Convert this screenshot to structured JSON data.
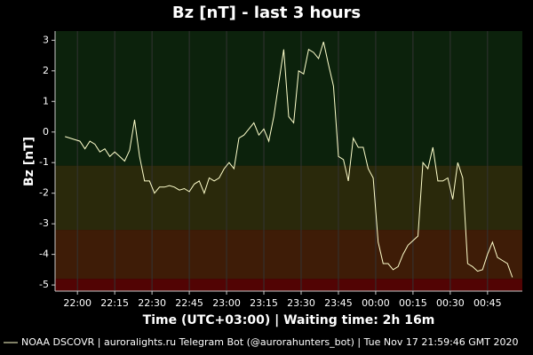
{
  "chart_data": {
    "type": "line",
    "title": "Bz [nT] - last 3 hours",
    "y_label": "Bz [nT]",
    "x_label": "Time (UTC+03:00) | Waiting time: 2h 16m",
    "footer": "NOAA DSCOVR | auroralights.ru Telegram Bot (@aurorahunters_bot) | Tue Nov 17 21:59:46 GMT 2020",
    "x": [
      "21:55",
      "21:57",
      "21:59",
      "22:01",
      "22:03",
      "22:05",
      "22:07",
      "22:09",
      "22:11",
      "22:13",
      "22:15",
      "22:17",
      "22:19",
      "22:21",
      "22:23",
      "22:25",
      "22:27",
      "22:29",
      "22:31",
      "22:33",
      "22:35",
      "22:37",
      "22:39",
      "22:41",
      "22:43",
      "22:45",
      "22:47",
      "22:49",
      "22:51",
      "22:53",
      "22:55",
      "22:57",
      "22:59",
      "23:01",
      "23:03",
      "23:05",
      "23:07",
      "23:09",
      "23:11",
      "23:13",
      "23:15",
      "23:17",
      "23:19",
      "23:21",
      "23:23",
      "23:25",
      "23:27",
      "23:29",
      "23:31",
      "23:33",
      "23:35",
      "23:37",
      "23:39",
      "23:41",
      "23:43",
      "23:45",
      "23:47",
      "23:49",
      "23:51",
      "23:53",
      "23:55",
      "23:57",
      "23:59",
      "00:01",
      "00:03",
      "00:05",
      "00:07",
      "00:09",
      "00:11",
      "00:13",
      "00:15",
      "00:17",
      "00:19",
      "00:21",
      "00:23",
      "00:25",
      "00:27",
      "00:29",
      "00:31",
      "00:33",
      "00:35",
      "00:37",
      "00:39",
      "00:41",
      "00:43",
      "00:45",
      "00:47",
      "00:49",
      "00:51",
      "00:53",
      "00:55"
    ],
    "series": [
      {
        "name": "NOAA DSCOVR",
        "color": "#ffffcc",
        "values": [
          -0.15,
          -0.2,
          -0.25,
          -0.3,
          -0.55,
          -0.3,
          -0.4,
          -0.65,
          -0.55,
          -0.8,
          -0.65,
          -0.8,
          -0.95,
          -0.6,
          0.4,
          -0.8,
          -1.6,
          -1.6,
          -2.0,
          -1.8,
          -1.8,
          -1.75,
          -1.8,
          -1.9,
          -1.85,
          -1.95,
          -1.7,
          -1.6,
          -2.0,
          -1.5,
          -1.6,
          -1.5,
          -1.2,
          -1.0,
          -1.2,
          -0.2,
          -0.1,
          0.1,
          0.3,
          -0.1,
          0.1,
          -0.3,
          0.5,
          1.6,
          2.7,
          0.5,
          0.3,
          2.0,
          1.9,
          2.7,
          2.6,
          2.4,
          2.95,
          2.2,
          1.5,
          -0.8,
          -0.9,
          -1.6,
          -0.2,
          -0.5,
          -0.5,
          -1.2,
          -1.5,
          -3.6,
          -4.3,
          -4.3,
          -4.5,
          -4.4,
          -4.0,
          -3.7,
          -3.55,
          -3.4,
          -1.0,
          -1.2,
          -0.5,
          -1.6,
          -1.6,
          -1.5,
          -2.2,
          -1.0,
          -1.5,
          -4.3,
          -4.4,
          -4.55,
          -4.5,
          -4.0,
          -3.6,
          -4.1,
          -4.2,
          -4.3,
          -4.75
        ]
      }
    ],
    "xlim": [
      "21:51",
      "00:59"
    ],
    "xticks": [
      "22:00",
      "22:15",
      "22:30",
      "22:45",
      "23:00",
      "23:15",
      "23:30",
      "23:45",
      "00:00",
      "00:15",
      "00:30",
      "00:45"
    ],
    "ylim": [
      -5.2,
      3.3
    ],
    "yticks": [
      -5,
      -4,
      -3,
      -2,
      -1,
      0,
      1,
      2,
      3
    ],
    "bands": [
      {
        "from": 3.3,
        "to": -1.1,
        "color": "#0c220c"
      },
      {
        "from": -1.1,
        "to": -3.2,
        "color": "#2a290b"
      },
      {
        "from": -3.2,
        "to": -4.8,
        "color": "#3e1c07"
      },
      {
        "from": -4.8,
        "to": -5.2,
        "color": "#520404"
      }
    ],
    "grid": true
  }
}
